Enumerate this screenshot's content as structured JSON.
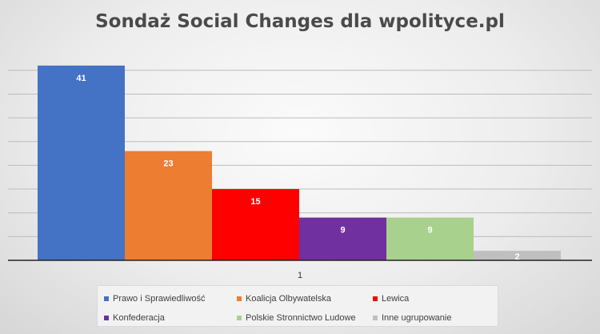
{
  "chart_data": {
    "type": "bar",
    "title": "Sondaż Social Changes dla wpolityce.pl",
    "categories": [
      "1"
    ],
    "series": [
      {
        "name": "Prawo i Sprawiedliwość",
        "values": [
          41
        ],
        "color": "#4472c4"
      },
      {
        "name": "Koalicja Olbywatelska",
        "values": [
          23
        ],
        "color": "#ed7d31"
      },
      {
        "name": "Lewica",
        "values": [
          15
        ],
        "color": "#ff0000"
      },
      {
        "name": "Konfederacja",
        "values": [
          9
        ],
        "color": "#7030a0"
      },
      {
        "name": "Polskie Stronnictwo Ludowe",
        "values": [
          9
        ],
        "color": "#a9d18e"
      },
      {
        "name": "Inne ugrupowanie",
        "values": [
          2
        ],
        "color": "#bfbfbf"
      }
    ],
    "xlabel": "",
    "ylabel": "",
    "ylim": [
      0,
      45
    ],
    "grid": true,
    "legend": "bottom"
  }
}
